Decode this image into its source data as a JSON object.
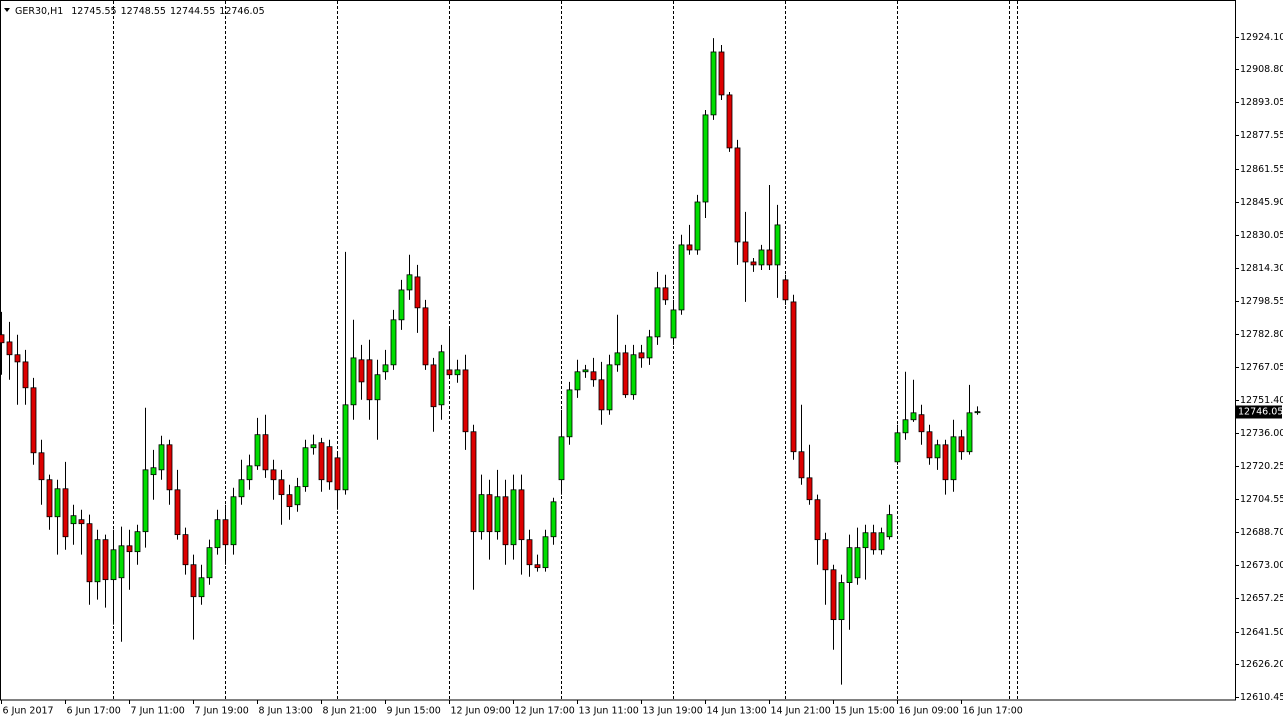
{
  "chart_data": {
    "type": "candlestick",
    "symbol": "GER30,H1",
    "up_color": "#00dd00",
    "down_color": "#dd0000",
    "ylim": [
      12609.0,
      12939.8
    ],
    "yticks": [
      {
        "value": 12924.1,
        "label": "12924.10"
      },
      {
        "value": 12908.8,
        "label": "12908.80"
      },
      12893.05,
      12877.55,
      12861.55,
      {
        "value": 12845.9,
        "label": "12845.90"
      },
      12830.05,
      {
        "value": 12814.3,
        "label": "12814.30"
      },
      12798.55,
      {
        "value": 12782.8,
        "label": "12782.80"
      },
      12767.05,
      {
        "value": 12751.4,
        "label": "12751.40"
      },
      {
        "value": 12736.0,
        "label": "12736.00"
      },
      12720.25,
      12704.55,
      {
        "value": 12688.7,
        "label": "12688.70"
      },
      {
        "value": 12673.0,
        "label": "12673.00"
      },
      12657.25,
      {
        "value": 12641.5,
        "label": "12641.50"
      },
      {
        "value": 12626.2,
        "label": "12626.20"
      },
      12610.45
    ],
    "categories": [
      "6 Jun 2017",
      null,
      null,
      null,
      null,
      null,
      null,
      null,
      "6 Jun 17:00",
      null,
      null,
      null,
      null,
      null,
      null,
      null,
      "7 Jun 11:00",
      null,
      null,
      null,
      null,
      null,
      null,
      null,
      "7 Jun 19:00",
      null,
      null,
      null,
      null,
      null,
      null,
      null,
      "8 Jun 13:00",
      null,
      null,
      null,
      null,
      null,
      null,
      null,
      "8 Jun 21:00",
      null,
      null,
      null,
      null,
      null,
      null,
      null,
      "9 Jun 15:00",
      null,
      null,
      null,
      null,
      null,
      null,
      null,
      "12 Jun 09:00",
      null,
      null,
      null,
      null,
      null,
      null,
      null,
      "12 Jun 17:00",
      null,
      null,
      null,
      null,
      null,
      null,
      null,
      "13 Jun 11:00",
      null,
      null,
      null,
      null,
      null,
      null,
      null,
      "13 Jun 19:00",
      null,
      null,
      null,
      null,
      null,
      null,
      null,
      "14 Jun 13:00",
      null,
      null,
      null,
      null,
      null,
      null,
      null,
      "14 Jun 21:00",
      null,
      null,
      null,
      null,
      null,
      null,
      null,
      "15 Jun 15:00",
      null,
      null,
      null,
      null,
      null,
      null,
      null,
      "16 Jun 09:00",
      null,
      null,
      null,
      null,
      null,
      null,
      null,
      "16 Jun 17:00",
      null,
      null
    ],
    "open": [
      12782.6,
      12779.2,
      12773.1,
      12769.7,
      12757.4,
      12726.5,
      12713.7,
      12696.1,
      12709.4,
      12692.8,
      12694.7,
      12692.8,
      12665.2,
      12685.2,
      12666.2,
      12667.1,
      12682.3,
      12679.5,
      12689.0,
      12716.1,
      12718.4,
      12730.3,
      12708.9,
      12687.6,
      12673.3,
      12658.1,
      12667.1,
      12681.4,
      12694.7,
      12682.8,
      12705.6,
      12713.7,
      12720.3,
      12735.1,
      12718.4,
      12713.7,
      12706.6,
      12701.8,
      12710.4,
      12728.9,
      12731.3,
      12729.4,
      12724.1,
      12708.9,
      12749.3,
      12770.7,
      12770.7,
      12751.7,
      12765.0,
      12768.3,
      12789.7,
      12803.9,
      12810.1,
      12795.4,
      12768.3,
      12749.3,
      12765.9,
      12763.6,
      12765.9,
      12736.5,
      12689.0,
      12706.6,
      12689.0,
      12705.6,
      12682.8,
      12708.9,
      12685.2,
      12673.3,
      12671.9,
      12686.6,
      12713.7,
      12734.1,
      12756.4,
      12765.0,
      12765.0,
      12761.2,
      12746.9,
      12768.3,
      12774.0,
      12754.1,
      12774.0,
      12771.6,
      12781.6,
      12804.9,
      12781.1,
      12794.4,
      12825.3,
      12822.9,
      12845.7,
      12887.1,
      12917.0,
      12896.6,
      12871.4,
      12826.7,
      12817.2,
      12815.8,
      12822.9,
      12815.8,
      12808.7,
      12798.2,
      12727.0,
      12714.6,
      12704.2,
      12685.2,
      12670.9,
      12647.2,
      12664.8,
      12667.1,
      12681.4,
      12688.5,
      12680.4,
      12686.6,
      12722.2,
      12736.0,
      12742.2,
      12744.6,
      12736.5,
      12724.1,
      12730.3,
      12713.7,
      12734.1,
      12727.0,
      12745.55
    ],
    "high": [
      12793.5,
      12788.7,
      12782.6,
      12775.4,
      12762.1,
      12732.7,
      12716.1,
      12713.7,
      12722.2,
      12701.8,
      12699.4,
      12697.1,
      12689.9,
      12687.6,
      12689.9,
      12691.4,
      12689.9,
      12692.3,
      12747.9,
      12727.9,
      12734.6,
      12732.7,
      12718.4,
      12690.9,
      12678.1,
      12673.3,
      12685.2,
      12699.4,
      12701.8,
      12709.9,
      12723.2,
      12725.6,
      12743.1,
      12744.6,
      12723.2,
      12718.4,
      12711.3,
      12714.6,
      12732.7,
      12735.1,
      12733.6,
      12732.7,
      12727.0,
      12822.0,
      12789.7,
      12777.8,
      12780.2,
      12770.7,
      12775.4,
      12794.4,
      12808.7,
      12820.6,
      12815.8,
      12799.2,
      12771.6,
      12777.8,
      12785.9,
      12770.7,
      12773.1,
      12739.8,
      12716.1,
      12713.7,
      12718.4,
      12713.7,
      12716.1,
      12716.1,
      12689.9,
      12678.1,
      12689.9,
      12705.1,
      12746.9,
      12760.2,
      12770.7,
      12768.3,
      12771.6,
      12769.7,
      12773.1,
      12792.1,
      12777.8,
      12777.8,
      12777.8,
      12784.9,
      12812.5,
      12811.1,
      12799.2,
      12830.1,
      12834.8,
      12849.1,
      12889.4,
      12923.6,
      12920.3,
      12898.0,
      12875.2,
      12841.0,
      12819.1,
      12825.3,
      12853.8,
      12844.3,
      12811.1,
      12801.6,
      12749.3,
      12730.3,
      12706.6,
      12688.5,
      12673.3,
      12668.6,
      12687.6,
      12690.9,
      12692.3,
      12692.3,
      12690.9,
      12701.8,
      12739.8,
      12765.0,
      12761.2,
      12749.3,
      12739.8,
      12732.7,
      12732.7,
      12742.2,
      12737.4,
      12758.8,
      12748.55
    ],
    "low": [
      12763.6,
      12761.2,
      12749.3,
      12749.3,
      12720.8,
      12701.8,
      12689.9,
      12678.1,
      12680.4,
      12682.8,
      12678.1,
      12654.3,
      12656.7,
      12652.9,
      12644.8,
      12636.7,
      12661.4,
      12673.3,
      12681.4,
      12704.2,
      12713.7,
      12701.8,
      12685.2,
      12668.6,
      12637.7,
      12654.3,
      12663.8,
      12678.1,
      12673.3,
      12678.1,
      12701.8,
      12708.9,
      12718.4,
      12714.6,
      12704.2,
      12692.3,
      12694.7,
      12698.5,
      12708.0,
      12725.6,
      12708.0,
      12708.9,
      12699.4,
      12706.6,
      12742.2,
      12751.7,
      12742.2,
      12732.7,
      12761.2,
      12765.9,
      12784.9,
      12799.2,
      12783.5,
      12765.9,
      12736.5,
      12742.2,
      12762.1,
      12759.8,
      12727.9,
      12661.4,
      12685.2,
      12675.7,
      12685.2,
      12673.3,
      12675.7,
      12668.6,
      12667.6,
      12670.0,
      12670.0,
      12682.8,
      12706.6,
      12730.3,
      12752.6,
      12762.1,
      12757.9,
      12739.8,
      12744.6,
      12765.0,
      12752.6,
      12751.7,
      12766.9,
      12768.3,
      12777.8,
      12796.8,
      12777.8,
      12792.1,
      12820.6,
      12820.6,
      12838.1,
      12884.7,
      12894.2,
      12869.5,
      12815.8,
      12798.2,
      12812.5,
      12813.4,
      12813.4,
      12800.1,
      12796.8,
      12723.2,
      12711.3,
      12701.8,
      12673.3,
      12654.3,
      12632.9,
      12616.3,
      12642.4,
      12663.8,
      12666.2,
      12678.1,
      12678.1,
      12685.2,
      12720.8,
      12732.7,
      12741.2,
      12730.3,
      12720.8,
      12718.4,
      12706.6,
      12708.0,
      12723.2,
      12725.6,
      12744.55
    ],
    "close": [
      12778.8,
      12773.1,
      12769.7,
      12757.4,
      12726.5,
      12713.7,
      12696.1,
      12709.4,
      12686.6,
      12696.6,
      12692.8,
      12665.2,
      12685.2,
      12666.2,
      12680.4,
      12682.3,
      12679.5,
      12689.0,
      12718.4,
      12719.4,
      12730.3,
      12708.9,
      12687.6,
      12673.3,
      12658.1,
      12667.1,
      12681.4,
      12694.7,
      12682.8,
      12705.6,
      12713.7,
      12720.3,
      12735.1,
      12718.4,
      12713.7,
      12706.6,
      12700.9,
      12710.4,
      12728.9,
      12730.3,
      12713.7,
      12712.7,
      12708.9,
      12749.3,
      12771.6,
      12760.2,
      12751.7,
      12763.6,
      12768.3,
      12789.7,
      12803.9,
      12811.1,
      12795.4,
      12768.3,
      12748.4,
      12774.5,
      12763.6,
      12765.9,
      12736.5,
      12689.0,
      12706.6,
      12689.0,
      12705.6,
      12682.8,
      12708.9,
      12685.2,
      12673.3,
      12671.9,
      12686.6,
      12703.2,
      12734.1,
      12756.4,
      12765.0,
      12765.9,
      12761.2,
      12746.9,
      12768.3,
      12774.0,
      12754.1,
      12773.1,
      12771.6,
      12781.6,
      12804.9,
      12799.2,
      12794.4,
      12825.3,
      12822.9,
      12845.7,
      12887.1,
      12917.0,
      12896.6,
      12871.4,
      12826.7,
      12817.2,
      12815.8,
      12822.9,
      12815.8,
      12834.8,
      12799.2,
      12727.0,
      12714.6,
      12704.2,
      12685.2,
      12670.9,
      12647.2,
      12664.8,
      12681.4,
      12681.4,
      12688.5,
      12680.4,
      12688.5,
      12697.1,
      12736.0,
      12742.2,
      12745.5,
      12736.5,
      12724.1,
      12730.3,
      12713.7,
      12734.1,
      12727.0,
      12745.5,
      12746.05
    ]
  }
}
